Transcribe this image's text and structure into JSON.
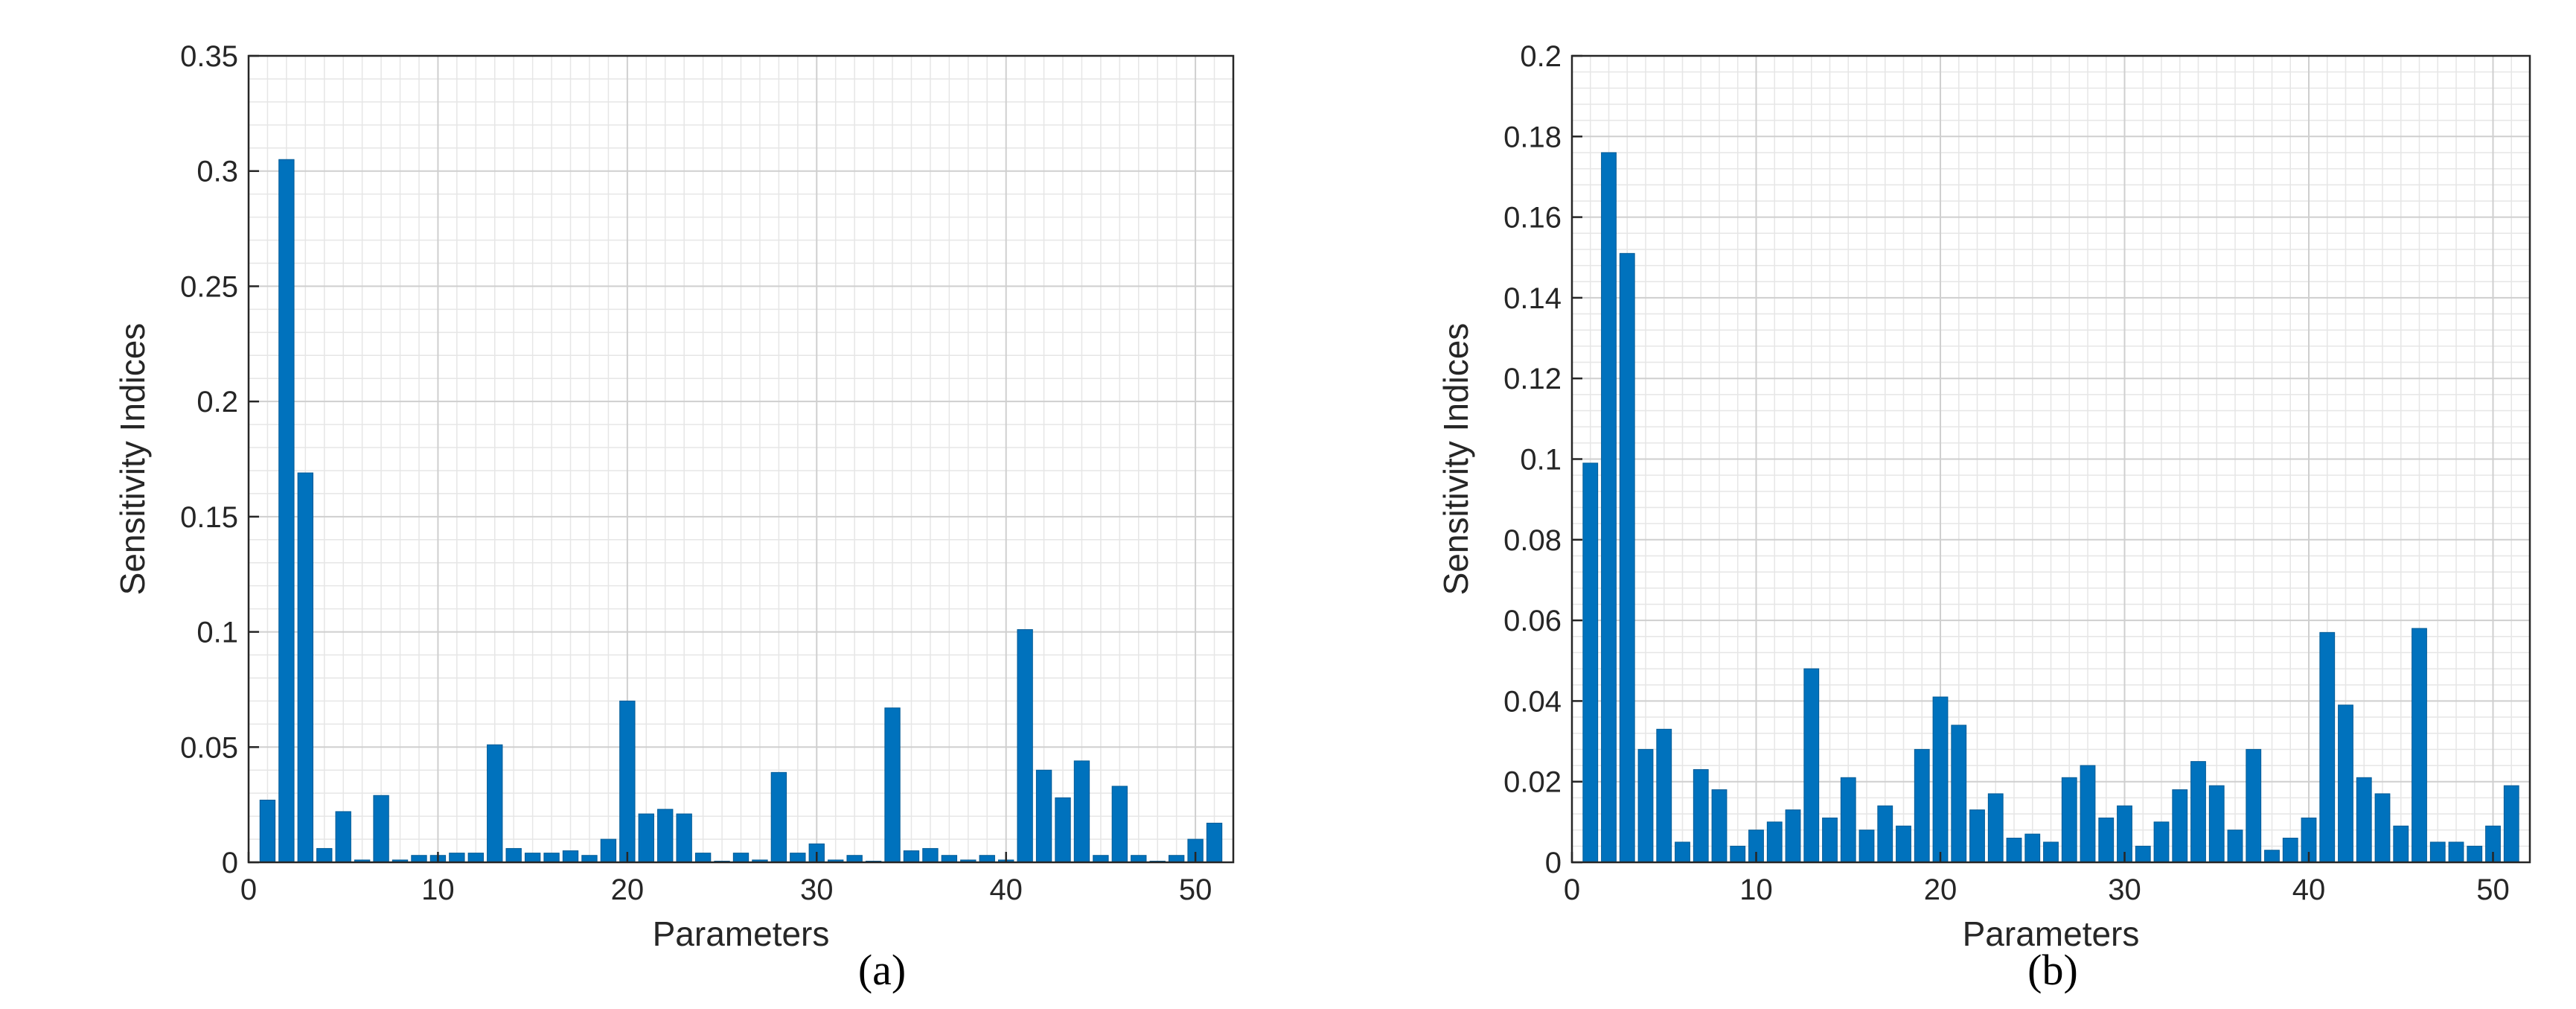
{
  "figure": {
    "captions": [
      "(a)",
      "(b)"
    ]
  },
  "chart_data": [
    {
      "type": "bar",
      "xlabel": "Parameters",
      "ylabel": "Sensitivity Indices",
      "xlim": [
        0,
        52
      ],
      "ylim": [
        0,
        0.35
      ],
      "xticks": [
        0,
        10,
        20,
        30,
        40,
        50
      ],
      "yticks": [
        0,
        0.05,
        0.1,
        0.15,
        0.2,
        0.25,
        0.3,
        0.35
      ],
      "ytick_labels": [
        "0",
        "0.05",
        "0.1",
        "0.15",
        "0.2",
        "0.25",
        "0.3",
        "0.35"
      ],
      "grid": true,
      "minor_grid": true,
      "bar_color": "#0072BD",
      "x": [
        1,
        2,
        3,
        4,
        5,
        6,
        7,
        8,
        9,
        10,
        11,
        12,
        13,
        14,
        15,
        16,
        17,
        18,
        19,
        20,
        21,
        22,
        23,
        24,
        25,
        26,
        27,
        28,
        29,
        30,
        31,
        32,
        33,
        34,
        35,
        36,
        37,
        38,
        39,
        40,
        41,
        42,
        43,
        44,
        45,
        46,
        47,
        48,
        49,
        50,
        51
      ],
      "values": [
        0.027,
        0.305,
        0.169,
        0.006,
        0.022,
        0.001,
        0.029,
        0.001,
        0.003,
        0.003,
        0.004,
        0.004,
        0.051,
        0.006,
        0.004,
        0.004,
        0.005,
        0.003,
        0.01,
        0.07,
        0.021,
        0.023,
        0.021,
        0.004,
        0.0005,
        0.004,
        0.001,
        0.039,
        0.004,
        0.008,
        0.001,
        0.003,
        0.0005,
        0.067,
        0.005,
        0.006,
        0.003,
        0.001,
        0.003,
        0.001,
        0.101,
        0.04,
        0.028,
        0.044,
        0.003,
        0.033,
        0.003,
        0.0005,
        0.003,
        0.01,
        0.017
      ]
    },
    {
      "type": "bar",
      "xlabel": "Parameters",
      "ylabel": "Sensitivity Indices",
      "xlim": [
        0,
        52
      ],
      "ylim": [
        0,
        0.2
      ],
      "xticks": [
        0,
        10,
        20,
        30,
        40,
        50
      ],
      "yticks": [
        0,
        0.02,
        0.04,
        0.06,
        0.08,
        0.1,
        0.12,
        0.14,
        0.16,
        0.18,
        0.2
      ],
      "ytick_labels": [
        "0",
        "0.02",
        "0.04",
        "0.06",
        "0.08",
        "0.1",
        "0.12",
        "0.14",
        "0.16",
        "0.18",
        "0.2"
      ],
      "grid": true,
      "minor_grid": true,
      "bar_color": "#0072BD",
      "x": [
        1,
        2,
        3,
        4,
        5,
        6,
        7,
        8,
        9,
        10,
        11,
        12,
        13,
        14,
        15,
        16,
        17,
        18,
        19,
        20,
        21,
        22,
        23,
        24,
        25,
        26,
        27,
        28,
        29,
        30,
        31,
        32,
        33,
        34,
        35,
        36,
        37,
        38,
        39,
        40,
        41,
        42,
        43,
        44,
        45,
        46,
        47,
        48,
        49,
        50,
        51
      ],
      "values": [
        0.099,
        0.176,
        0.151,
        0.028,
        0.033,
        0.005,
        0.023,
        0.018,
        0.004,
        0.008,
        0.01,
        0.013,
        0.048,
        0.011,
        0.021,
        0.008,
        0.014,
        0.009,
        0.028,
        0.041,
        0.034,
        0.013,
        0.017,
        0.006,
        0.007,
        0.005,
        0.021,
        0.024,
        0.011,
        0.014,
        0.004,
        0.01,
        0.018,
        0.025,
        0.019,
        0.008,
        0.028,
        0.003,
        0.006,
        0.011,
        0.057,
        0.039,
        0.021,
        0.017,
        0.009,
        0.058,
        0.005,
        0.005,
        0.004,
        0.009,
        0.019
      ]
    }
  ]
}
